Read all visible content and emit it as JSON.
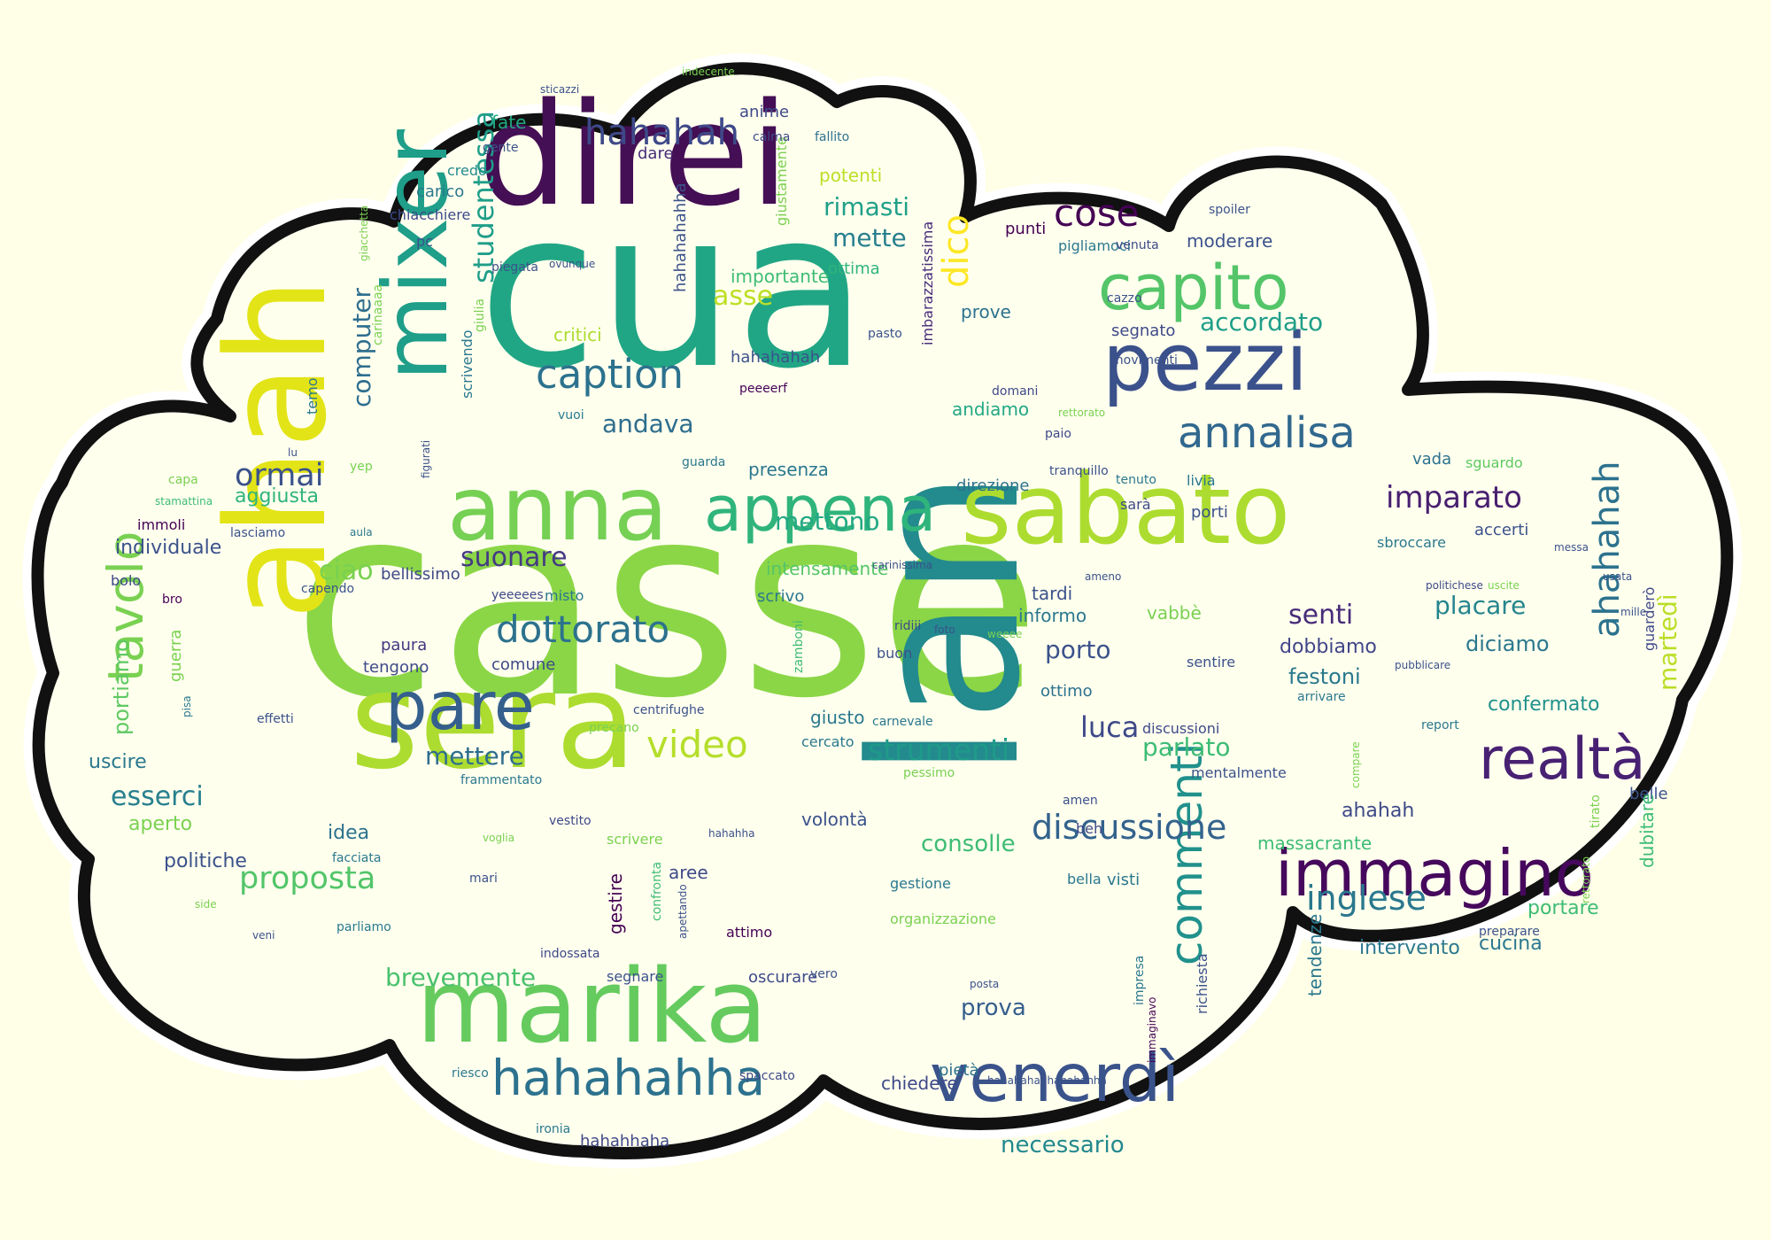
{
  "colors": {
    "background": "#ffffe8",
    "cloud_fill": "#ffffee",
    "cloud_border": "#111111",
    "cloud_halo": "#ffffff"
  },
  "words": [
    {
      "text": "casse",
      "color": "#8bd646"
    },
    {
      "text": "cua",
      "color": "#21a685"
    },
    {
      "text": "lan",
      "color": "#238a8d"
    },
    {
      "text": "sera",
      "color": "#addc30"
    },
    {
      "text": "direi",
      "color": "#440f54"
    },
    {
      "text": "marika",
      "color": "#65cb5e"
    },
    {
      "text": "sabato",
      "color": "#addc30"
    },
    {
      "text": "anna",
      "color": "#75d054"
    },
    {
      "text": "ahah",
      "color": "#e2e418"
    },
    {
      "text": "pezzi",
      "color": "#3b518b"
    },
    {
      "text": "mixer",
      "color": "#1f9e89"
    },
    {
      "text": "appena",
      "color": "#2fb47c"
    },
    {
      "text": "immagino",
      "color": "#46085c"
    },
    {
      "text": "capito",
      "color": "#54c568"
    },
    {
      "text": "venerdì",
      "color": "#3a538b"
    },
    {
      "text": "hahahahha",
      "color": "#2c728e"
    },
    {
      "text": "realtà",
      "color": "#482173"
    },
    {
      "text": "pare",
      "color": "#355f8d"
    },
    {
      "text": "annalisa",
      "color": "#31688e"
    },
    {
      "text": "commenti",
      "color": "#21918c"
    },
    {
      "text": "caption",
      "color": "#2c728e"
    },
    {
      "text": "cose",
      "color": "#440154"
    },
    {
      "text": "dottorato",
      "color": "#2c728e"
    },
    {
      "text": "discussione",
      "color": "#33638d"
    },
    {
      "text": "video",
      "color": "#b5de2b"
    },
    {
      "text": "tavolo",
      "color": "#7ad151"
    },
    {
      "text": "hahahah",
      "color": "#3e4989"
    },
    {
      "text": "imparato",
      "color": "#481f70"
    },
    {
      "text": "ahahahah",
      "color": "#2c728e"
    },
    {
      "text": "inglese",
      "color": "#2a788e"
    },
    {
      "text": "proposta",
      "color": "#52c569"
    },
    {
      "text": "strumenti",
      "color": "#1f9a8a"
    },
    {
      "text": "ormai",
      "color": "#3b528b"
    },
    {
      "text": "accordato",
      "color": "#1f9e89"
    },
    {
      "text": "mettono",
      "color": "#22a884"
    },
    {
      "text": "suonare",
      "color": "#443a83"
    },
    {
      "text": "brevemente",
      "color": "#4ac16d"
    },
    {
      "text": "parlato",
      "color": "#3dbc74"
    },
    {
      "text": "senti",
      "color": "#472c7a"
    },
    {
      "text": "rimasti",
      "color": "#1fa088"
    },
    {
      "text": "mette",
      "color": "#277f8e"
    },
    {
      "text": "andava",
      "color": "#2e6e8e"
    },
    {
      "text": "ciao",
      "color": "#7ad151"
    },
    {
      "text": "luca",
      "color": "#3e4989"
    },
    {
      "text": "porto",
      "color": "#3b528b"
    },
    {
      "text": "asse",
      "color": "#bddf26"
    },
    {
      "text": "dico",
      "color": "#fde725"
    },
    {
      "text": "mettere",
      "color": "#2e6e8e"
    },
    {
      "text": "consolle",
      "color": "#3dbc74"
    },
    {
      "text": "prova",
      "color": "#355f8d"
    },
    {
      "text": "esserci",
      "color": "#277f8e"
    },
    {
      "text": "necessario",
      "color": "#23888e"
    },
    {
      "text": "festoni",
      "color": "#2a788e"
    },
    {
      "text": "dobbiamo",
      "color": "#404688"
    },
    {
      "text": "martedì",
      "color": "#bade28"
    },
    {
      "text": "studentessa",
      "color": "#1f9e89"
    },
    {
      "text": "computer",
      "color": "#2e6e8e"
    },
    {
      "text": "portiamo",
      "color": "#5ec962"
    },
    {
      "text": "placare",
      "color": "#25858e"
    },
    {
      "text": "diciamo",
      "color": "#2a788e"
    },
    {
      "text": "confermato",
      "color": "#21918c"
    },
    {
      "text": "intervento",
      "color": "#2a788e"
    },
    {
      "text": "cucina",
      "color": "#2a788e"
    },
    {
      "text": "portare",
      "color": "#3dbc74"
    },
    {
      "text": "ahahah",
      "color": "#3e4989"
    },
    {
      "text": "aggiusta",
      "color": "#2fb47c"
    },
    {
      "text": "individuale",
      "color": "#3b528b"
    },
    {
      "text": "uscire",
      "color": "#2a788e"
    },
    {
      "text": "politiche",
      "color": "#3b528b"
    },
    {
      "text": "idea",
      "color": "#2c728e"
    },
    {
      "text": "aperto",
      "color": "#7ad151"
    },
    {
      "text": "paura",
      "color": "#453781"
    },
    {
      "text": "tengono",
      "color": "#3e4989"
    },
    {
      "text": "comune",
      "color": "#3e4989"
    },
    {
      "text": "presenza",
      "color": "#2a788e"
    },
    {
      "text": "intensamente",
      "color": "#54c568"
    },
    {
      "text": "direzione",
      "color": "#2c728e"
    },
    {
      "text": "andiamo",
      "color": "#22a884"
    },
    {
      "text": "accerti",
      "color": "#3b528b"
    },
    {
      "text": "imbarazzatissima",
      "color": "#472c7a"
    },
    {
      "text": "hahahahahha",
      "color": "#3b528b"
    },
    {
      "text": "giustamente",
      "color": "#7ad151"
    },
    {
      "text": "importante",
      "color": "#3dbc74"
    },
    {
      "text": "ottima",
      "color": "#2fb47c"
    },
    {
      "text": "potenti",
      "color": "#bddf26"
    },
    {
      "text": "fallito",
      "color": "#2c728e"
    },
    {
      "text": "calma",
      "color": "#3e4989"
    },
    {
      "text": "anime",
      "color": "#3e4989"
    },
    {
      "text": "dare",
      "color": "#472c7a"
    },
    {
      "text": "fate",
      "color": "#22a884"
    },
    {
      "text": "gente",
      "color": "#3b528b"
    },
    {
      "text": "credo",
      "color": "#238a8d"
    },
    {
      "text": "carico",
      "color": "#2a788e"
    },
    {
      "text": "chiacchiere",
      "color": "#3e4989"
    },
    {
      "text": "pc",
      "color": "#3b528b"
    },
    {
      "text": "piegata",
      "color": "#3b528b"
    },
    {
      "text": "ovunque",
      "color": "#3b528b"
    },
    {
      "text": "punti",
      "color": "#440154"
    },
    {
      "text": "pigliamoci",
      "color": "#2a788e"
    },
    {
      "text": "venuta",
      "color": "#3e4989"
    },
    {
      "text": "moderare",
      "color": "#3b528b"
    },
    {
      "text": "spoiler",
      "color": "#3b528b"
    },
    {
      "text": "cazzo",
      "color": "#3b528b"
    },
    {
      "text": "segnato",
      "color": "#3e4989"
    },
    {
      "text": "movimenti",
      "color": "#3b528b"
    },
    {
      "text": "pasto",
      "color": "#3b528b"
    },
    {
      "text": "prove",
      "color": "#2c728e"
    },
    {
      "text": "critici",
      "color": "#addc30"
    },
    {
      "text": "hahahahah",
      "color": "#3b528b"
    },
    {
      "text": "peeeerf",
      "color": "#440154"
    },
    {
      "text": "vuoi",
      "color": "#2a788e"
    },
    {
      "text": "domani",
      "color": "#3e4989"
    },
    {
      "text": "paio",
      "color": "#3e4989"
    },
    {
      "text": "tenuto",
      "color": "#2a788e"
    },
    {
      "text": "tranquillo",
      "color": "#3b528b"
    },
    {
      "text": "livia",
      "color": "#2a788e"
    },
    {
      "text": "sarà",
      "color": "#3e4989"
    },
    {
      "text": "porti",
      "color": "#3b528b"
    },
    {
      "text": "vada",
      "color": "#2c728e"
    },
    {
      "text": "sguardo",
      "color": "#5ec962"
    },
    {
      "text": "sbroccare",
      "color": "#2a788e"
    },
    {
      "text": "messa",
      "color": "#3b528b"
    },
    {
      "text": "politichese",
      "color": "#3e4989"
    },
    {
      "text": "uscite",
      "color": "#7ad151"
    },
    {
      "text": "usata",
      "color": "#3b528b"
    },
    {
      "text": "mille",
      "color": "#3b528b"
    },
    {
      "text": "guarderò",
      "color": "#3e4989"
    },
    {
      "text": "pubblicare",
      "color": "#3b528b"
    },
    {
      "text": "arrivare",
      "color": "#2a788e"
    },
    {
      "text": "report",
      "color": "#2a788e"
    },
    {
      "text": "belle",
      "color": "#3b528b"
    },
    {
      "text": "compare",
      "color": "#7ad151"
    },
    {
      "text": "dubitare",
      "color": "#3dbc74"
    },
    {
      "text": "tirato",
      "color": "#7ad151"
    },
    {
      "text": "preparare",
      "color": "#3b528b"
    },
    {
      "text": "rettorato",
      "color": "#7ad151"
    },
    {
      "text": "massacrante",
      "color": "#3dbc74"
    },
    {
      "text": "tendenze",
      "color": "#2a788e"
    },
    {
      "text": "richiesta",
      "color": "#3b528b"
    },
    {
      "text": "impresa",
      "color": "#2a788e"
    },
    {
      "text": "immaginavo",
      "color": "#440154"
    },
    {
      "text": "hahahahahhahahahha",
      "color": "#3b528b"
    },
    {
      "text": "pietà",
      "color": "#2c728e"
    },
    {
      "text": "chiedere",
      "color": "#3e4989"
    },
    {
      "text": "posta",
      "color": "#3b528b"
    },
    {
      "text": "visti",
      "color": "#2a788e"
    },
    {
      "text": "bella",
      "color": "#2a788e"
    },
    {
      "text": "gestione",
      "color": "#2a788e"
    },
    {
      "text": "organizzazione",
      "color": "#7ad151"
    },
    {
      "text": "beh",
      "color": "#3e4989"
    },
    {
      "text": "amen",
      "color": "#3b528b"
    },
    {
      "text": "mentalmente",
      "color": "#3b528b"
    },
    {
      "text": "discussioni",
      "color": "#3e4989"
    },
    {
      "text": "sentire",
      "color": "#3b528b"
    },
    {
      "text": "ottimo",
      "color": "#2c728e"
    },
    {
      "text": "vabbè",
      "color": "#7ad151"
    },
    {
      "text": "informo",
      "color": "#2a788e"
    },
    {
      "text": "tardi",
      "color": "#3b528b"
    },
    {
      "text": "ameno",
      "color": "#3b528b"
    },
    {
      "text": "weeee",
      "color": "#7ad151"
    },
    {
      "text": "foto",
      "color": "#3b528b"
    },
    {
      "text": "ridiii",
      "color": "#3e4989"
    },
    {
      "text": "buon",
      "color": "#3b528b"
    },
    {
      "text": "carnevale",
      "color": "#2a788e"
    },
    {
      "text": "cercato",
      "color": "#2a788e"
    },
    {
      "text": "giusto",
      "color": "#2a788e"
    },
    {
      "text": "pessimo",
      "color": "#7ad151"
    },
    {
      "text": "volontà",
      "color": "#3b528b"
    },
    {
      "text": "hahahha",
      "color": "#3b528b"
    },
    {
      "text": "attimo",
      "color": "#440154"
    },
    {
      "text": "oscurare",
      "color": "#3e4989"
    },
    {
      "text": "vero",
      "color": "#3b528b"
    },
    {
      "text": "spaccato",
      "color": "#3e4989"
    },
    {
      "text": "hahahhaha",
      "color": "#3e4989"
    },
    {
      "text": "ironia",
      "color": "#2a788e"
    },
    {
      "text": "aree",
      "color": "#3e4989"
    },
    {
      "text": "confronta",
      "color": "#3dbc74"
    },
    {
      "text": "apettando",
      "color": "#3b528b"
    },
    {
      "text": "gestire",
      "color": "#440154"
    },
    {
      "text": "segnare",
      "color": "#3b528b"
    },
    {
      "text": "scrivere",
      "color": "#7ad151"
    },
    {
      "text": "indossata",
      "color": "#3e4989"
    },
    {
      "text": "mari",
      "color": "#3b528b"
    },
    {
      "text": "parliamo",
      "color": "#2a788e"
    },
    {
      "text": "veni",
      "color": "#3b528b"
    },
    {
      "text": "vestito",
      "color": "#3e4989"
    },
    {
      "text": "voglia",
      "color": "#7ad151"
    },
    {
      "text": "facciata",
      "color": "#2a788e"
    },
    {
      "text": "side",
      "color": "#7ad151"
    },
    {
      "text": "riesco",
      "color": "#2a788e"
    },
    {
      "text": "frammentato",
      "color": "#2a788e"
    },
    {
      "text": "precano",
      "color": "#7ad151"
    },
    {
      "text": "centrifughe",
      "color": "#3b528b"
    },
    {
      "text": "effetti",
      "color": "#3b528b"
    },
    {
      "text": "pisa",
      "color": "#2a788e"
    },
    {
      "text": "guerra",
      "color": "#7ad151"
    },
    {
      "text": "zamboni",
      "color": "#3dbc74"
    },
    {
      "text": "yeeeees",
      "color": "#3e4989"
    },
    {
      "text": "misto",
      "color": "#2a788e"
    },
    {
      "text": "scrivo",
      "color": "#2a788e"
    },
    {
      "text": "carinissima",
      "color": "#3b528b"
    },
    {
      "text": "bellissimo",
      "color": "#3e4989"
    },
    {
      "text": "capendo",
      "color": "#3b528b"
    },
    {
      "text": "bro",
      "color": "#440154"
    },
    {
      "text": "bolo",
      "color": "#3e4989"
    },
    {
      "text": "immoli",
      "color": "#440154"
    },
    {
      "text": "lasciamo",
      "color": "#3b528b"
    },
    {
      "text": "aula",
      "color": "#2a788e"
    },
    {
      "text": "stamattina",
      "color": "#3dbc74"
    },
    {
      "text": "capa",
      "color": "#7ad151"
    },
    {
      "text": "lu",
      "color": "#3b528b"
    },
    {
      "text": "temo",
      "color": "#2a788e"
    },
    {
      "text": "yep",
      "color": "#7ad151"
    },
    {
      "text": "figurati",
      "color": "#3b528b"
    },
    {
      "text": "scrivendo",
      "color": "#2a788e"
    },
    {
      "text": "giulia",
      "color": "#7ad151"
    },
    {
      "text": "carinaaaa",
      "color": "#7ad151"
    },
    {
      "text": "giacchetta",
      "color": "#7ad151"
    },
    {
      "text": "guarda",
      "color": "#2a788e"
    },
    {
      "text": "sticazzi",
      "color": "#3b528b"
    },
    {
      "text": "indecente",
      "color": "#7ad151"
    },
    {
      "text": "rettorato2",
      "color": "#7ad151"
    }
  ]
}
